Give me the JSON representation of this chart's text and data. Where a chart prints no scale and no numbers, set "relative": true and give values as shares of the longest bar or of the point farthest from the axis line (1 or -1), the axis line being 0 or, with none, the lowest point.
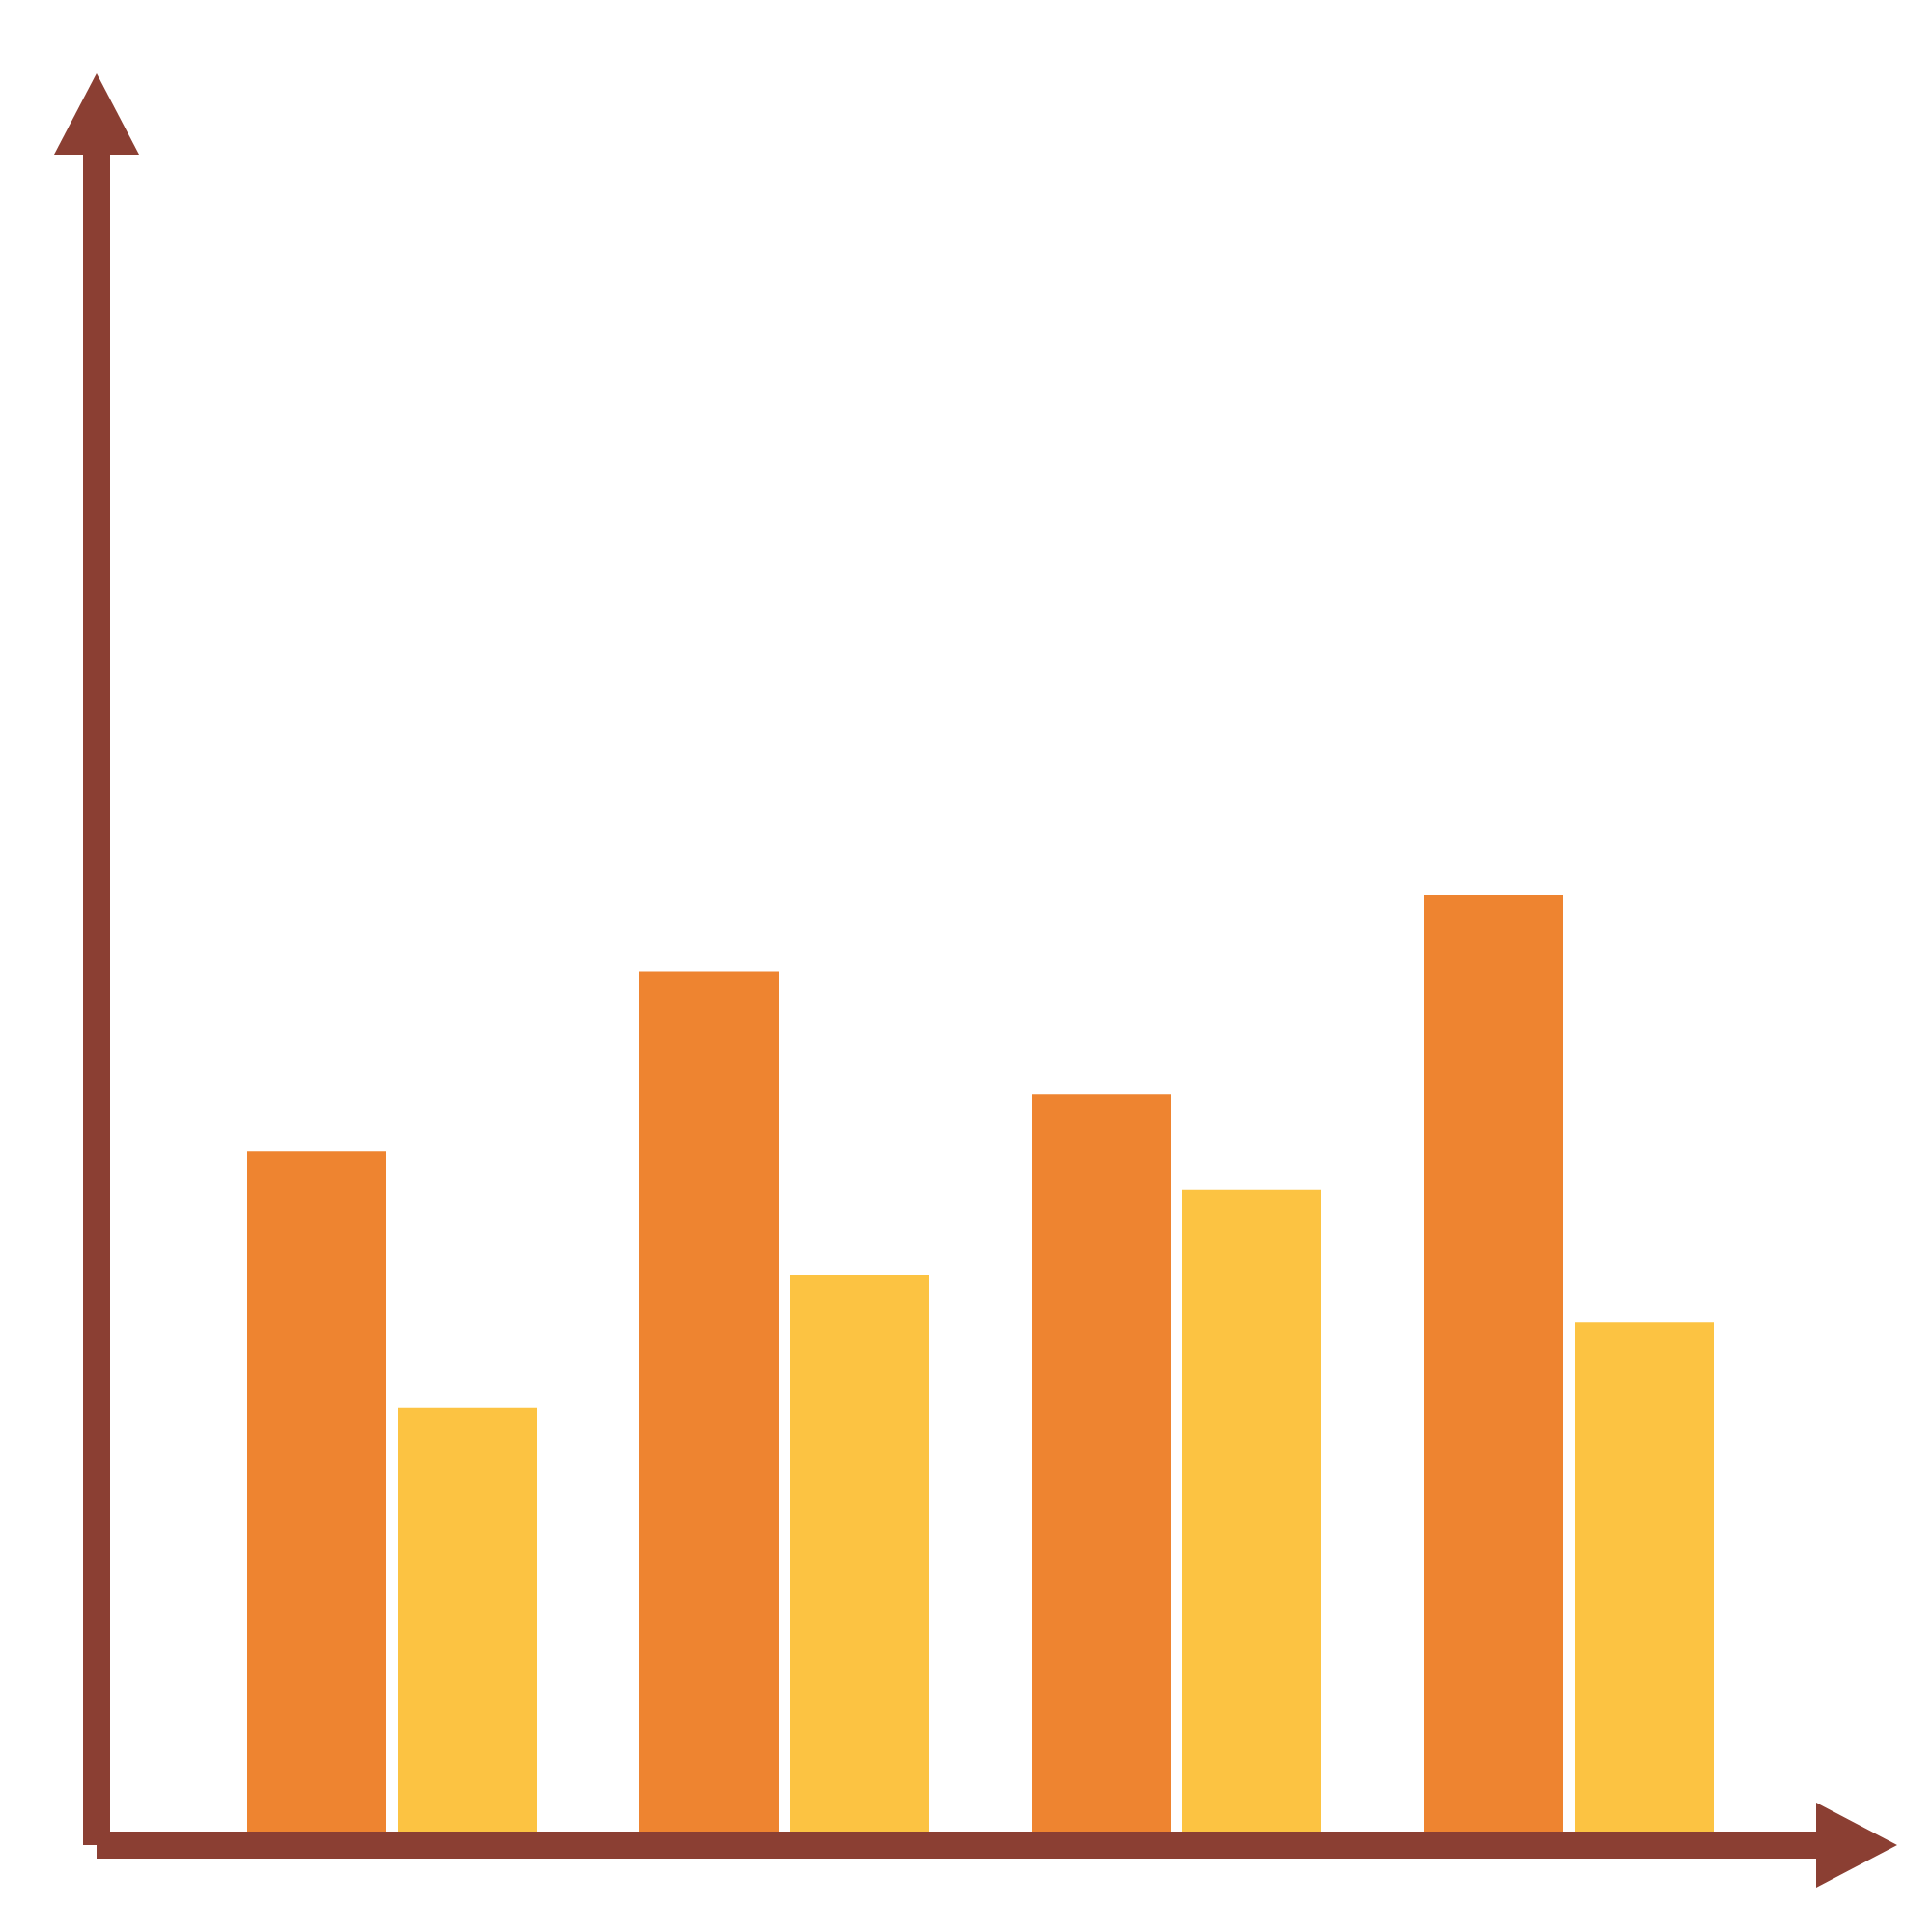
{
  "chart_data": {
    "type": "bar",
    "relative": true,
    "categories": [
      null,
      null,
      null,
      null
    ],
    "series": [
      {
        "color": "#ee8430",
        "values": [
          0.73,
          0.92,
          0.79,
          1
        ]
      },
      {
        "color": "#fcc342",
        "values": [
          0.46,
          0.6,
          0.69,
          0.55
        ]
      }
    ]
  }
}
